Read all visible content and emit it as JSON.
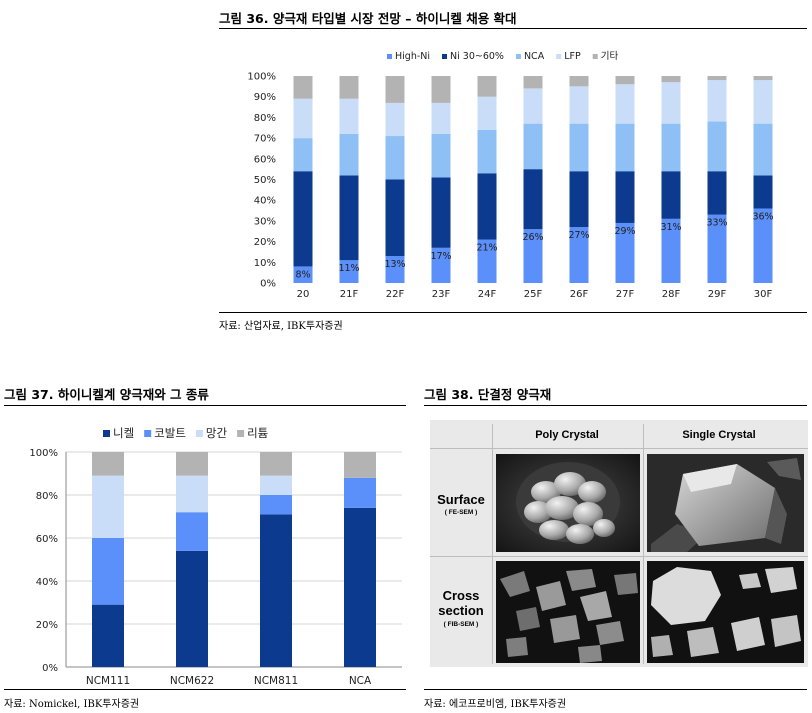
{
  "figure36": {
    "title": "그림 36. 양극재 타입별 시장 전망 – 하이니켈 채용 확대",
    "source": "자료: 산업자료, IBK투자증권"
  },
  "figure37": {
    "title": "그림 37. 하이니켈계 양극재와 그 종류",
    "source": "자료: Nomickel, IBK투자증권"
  },
  "figure38": {
    "title": "그림 38. 단결정 양극재",
    "source": "자료: 에코프로비엠, IBK투자증권",
    "col_headers": [
      "Poly Crystal",
      "Single Crystal"
    ],
    "rows": [
      {
        "label_lines": [
          "Surface"
        ],
        "sub": "( FE-SEM )"
      },
      {
        "label_lines": [
          "Cross",
          "section"
        ],
        "sub": "( FIB-SEM )"
      }
    ]
  },
  "colors": {
    "high_ni": "#5b8ff9",
    "ni_30_60": "#0b3a8f",
    "nca": "#8fc0f5",
    "lfp": "#c9ddf8",
    "other": "#b3b3b3",
    "cobalt": "#5b8ff9",
    "manganese": "#c9ddf8"
  },
  "chart_data": [
    {
      "type": "bar",
      "stacked": true,
      "categories": [
        "20",
        "21F",
        "22F",
        "23F",
        "24F",
        "25F",
        "26F",
        "27F",
        "28F",
        "29F",
        "30F"
      ],
      "series": [
        {
          "name": "High-Ni",
          "values": [
            8,
            11,
            13,
            17,
            21,
            26,
            27,
            29,
            31,
            33,
            36
          ]
        },
        {
          "name": "Ni 30~60%",
          "values": [
            46,
            41,
            37,
            34,
            32,
            29,
            27,
            25,
            23,
            21,
            16
          ]
        },
        {
          "name": "NCA",
          "values": [
            16,
            20,
            21,
            21,
            21,
            22,
            23,
            23,
            23,
            24,
            25
          ]
        },
        {
          "name": "LFP",
          "values": [
            19,
            17,
            16,
            15,
            16,
            17,
            18,
            19,
            20,
            20,
            21
          ]
        },
        {
          "name": "기타",
          "values": [
            11,
            11,
            13,
            13,
            10,
            6,
            5,
            4,
            3,
            2,
            2
          ]
        }
      ],
      "data_labels": [
        "8%",
        "11%",
        "13%",
        "17%",
        "21%",
        "26%",
        "27%",
        "29%",
        "31%",
        "33%",
        "36%"
      ],
      "y_ticks": [
        "0%",
        "10%",
        "20%",
        "30%",
        "40%",
        "50%",
        "60%",
        "70%",
        "80%",
        "90%",
        "100%"
      ],
      "ylim": [
        0,
        100
      ],
      "legend": "top",
      "grid": false
    },
    {
      "type": "bar",
      "stacked": true,
      "categories": [
        "NCM111",
        "NCM622",
        "NCM811",
        "NCA"
      ],
      "series": [
        {
          "name": "니켈",
          "values": [
            29,
            54,
            71,
            74
          ]
        },
        {
          "name": "코발트",
          "values": [
            31,
            18,
            9,
            14
          ]
        },
        {
          "name": "망간",
          "values": [
            29,
            17,
            9,
            0
          ]
        },
        {
          "name": "리튬",
          "values": [
            11,
            11,
            11,
            12
          ]
        }
      ],
      "y_ticks": [
        "0%",
        "20%",
        "40%",
        "60%",
        "80%",
        "100%"
      ],
      "ylim": [
        0,
        100
      ],
      "legend": "top",
      "grid": true
    }
  ]
}
